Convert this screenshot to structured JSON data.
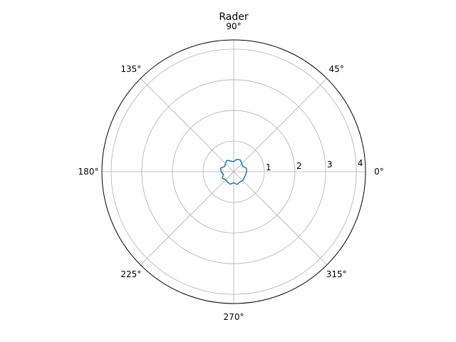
{
  "chart_data": {
    "type": "line",
    "projection": "polar",
    "title": "Rader",
    "theta_tick_labels": [
      "0°",
      "45°",
      "90°",
      "135°",
      "180°",
      "225°",
      "270°",
      "315°"
    ],
    "theta_ticks_deg": [
      0,
      45,
      90,
      135,
      180,
      225,
      270,
      315
    ],
    "r_ticks": [
      1,
      2,
      3,
      4
    ],
    "r_tick_labels": [
      "1",
      "2",
      "3",
      "4"
    ],
    "rlim": [
      0,
      4.3
    ],
    "grid": true,
    "series": [
      {
        "color": "#1f77b4",
        "closed": true,
        "theta_deg": [
          0,
          15,
          30,
          45,
          60,
          75,
          90,
          105,
          120,
          135,
          150,
          165,
          180,
          195,
          210,
          225,
          240,
          255,
          270,
          285,
          300,
          315,
          330,
          345
        ],
        "r": [
          0.42,
          0.43,
          0.35,
          0.37,
          0.44,
          0.42,
          0.33,
          0.36,
          0.43,
          0.38,
          0.34,
          0.44,
          0.41,
          0.35,
          0.43,
          0.37,
          0.4,
          0.42,
          0.36,
          0.43,
          0.39,
          0.41,
          0.4,
          0.4
        ]
      }
    ]
  }
}
